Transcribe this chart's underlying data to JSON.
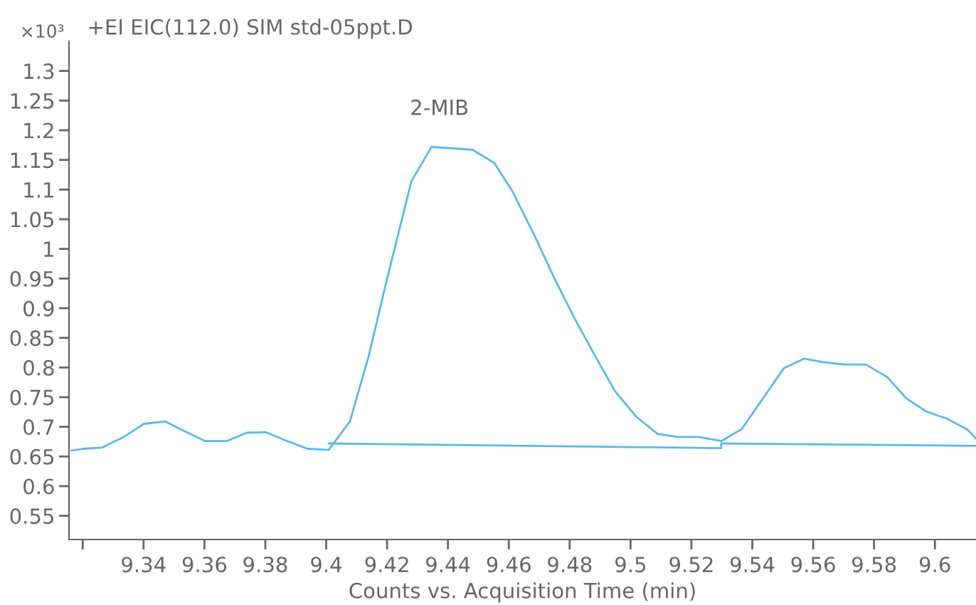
{
  "chart_data": {
    "type": "line",
    "title": "+EI EIC(112.0) SIM std-05ppt.D",
    "xlabel": "Counts vs. Acquisition Time (min)",
    "ylabel": "×10³",
    "annotations": [
      {
        "text": "2-MIB",
        "x": 9.4346,
        "y": 1.172
      }
    ],
    "series": [
      {
        "color": "#5bb8e8",
        "x": [
          9.3163,
          9.3202,
          9.3264,
          9.3335,
          9.3401,
          9.3472,
          9.3537,
          9.3603,
          9.3673,
          9.3739,
          9.3802,
          9.3872,
          9.3939,
          9.4008,
          9.4078,
          9.414,
          9.4196,
          9.428,
          9.4346,
          9.4481,
          9.4552,
          9.4612,
          9.4682,
          9.4752,
          9.4818,
          9.4883,
          9.4949,
          9.5019,
          9.5089,
          9.5154,
          9.5224,
          9.5298,
          9.5365,
          9.5435,
          9.5504,
          9.5571,
          9.5633,
          9.5703,
          9.5773,
          9.5843,
          9.5906,
          9.5971,
          9.6038,
          9.6108,
          9.6135
        ],
        "values": [
          0.66,
          0.663,
          0.665,
          0.683,
          0.705,
          0.709,
          0.692,
          0.676,
          0.676,
          0.69,
          0.691,
          0.676,
          0.663,
          0.661,
          0.709,
          0.82,
          0.941,
          1.114,
          1.172,
          1.167,
          1.145,
          1.097,
          1.025,
          0.948,
          0.881,
          0.82,
          0.76,
          0.717,
          0.688,
          0.683,
          0.683,
          0.676,
          0.696,
          0.748,
          0.799,
          0.815,
          0.809,
          0.805,
          0.805,
          0.784,
          0.748,
          0.726,
          0.714,
          0.695,
          0.68
        ]
      },
      {
        "color": "#5bb8e8",
        "x": [
          9.4008,
          9.5298,
          9.5298,
          9.6135
        ],
        "values": [
          0.672,
          0.664,
          0.672,
          0.668
        ]
      }
    ],
    "xlim": [
      9.3155,
      9.6135
    ],
    "ylim": [
      0.51,
      1.35
    ],
    "xticks": [
      {
        "value": 9.32,
        "label": null
      },
      9.34,
      9.36,
      9.38,
      9.4,
      9.42,
      9.44,
      9.46,
      9.48,
      9.5,
      9.52,
      9.54,
      9.56,
      9.58,
      9.6
    ],
    "yticks": [
      0.55,
      0.6,
      0.65,
      0.7,
      0.75,
      0.8,
      0.85,
      0.9,
      0.95,
      1,
      1.05,
      1.1,
      1.15,
      1.2,
      1.25,
      1.3
    ],
    "grid": false,
    "legend": false,
    "marker": "none",
    "line_style": "solid"
  }
}
